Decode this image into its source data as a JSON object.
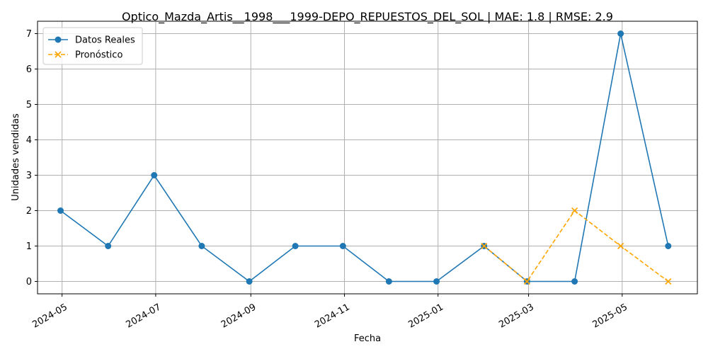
{
  "chart_data": {
    "type": "line",
    "title": "Optico_Mazda_Artis__1998___1999-DEPO_REPUESTOS_DEL_SOL | MAE: 1.8 | RMSE: 2.9",
    "xlabel": "Fecha",
    "ylabel": "Unidades vendidas",
    "ylim": [
      -0.35,
      7.35
    ],
    "xlim": [
      "2024-04-15",
      "2025-06-19"
    ],
    "grid": true,
    "legend_position": "top-left",
    "x_ticks": [
      "2024-05",
      "2024-07",
      "2024-09",
      "2024-11",
      "2025-01",
      "2025-03",
      "2025-05"
    ],
    "y_ticks": [
      0,
      1,
      2,
      3,
      4,
      5,
      6,
      7
    ],
    "series": [
      {
        "name": "Datos Reales",
        "color": "#1f77b4",
        "line_style": "solid",
        "marker": "circle",
        "points": [
          {
            "x": "2024-04-30",
            "y": 2
          },
          {
            "x": "2024-05-31",
            "y": 1
          },
          {
            "x": "2024-06-30",
            "y": 3
          },
          {
            "x": "2024-07-31",
            "y": 1
          },
          {
            "x": "2024-08-31",
            "y": 0
          },
          {
            "x": "2024-09-30",
            "y": 1
          },
          {
            "x": "2024-10-31",
            "y": 1
          },
          {
            "x": "2024-11-30",
            "y": 0
          },
          {
            "x": "2024-12-31",
            "y": 0
          },
          {
            "x": "2025-01-31",
            "y": 1
          },
          {
            "x": "2025-02-28",
            "y": 0
          },
          {
            "x": "2025-03-31",
            "y": 0
          },
          {
            "x": "2025-04-30",
            "y": 7
          },
          {
            "x": "2025-05-31",
            "y": 1
          }
        ]
      },
      {
        "name": "Pronóstico",
        "color": "#ffa500",
        "line_style": "dashed",
        "marker": "x",
        "points": [
          {
            "x": "2025-01-31",
            "y": 1
          },
          {
            "x": "2025-02-28",
            "y": 0
          },
          {
            "x": "2025-03-31",
            "y": 2
          },
          {
            "x": "2025-04-30",
            "y": 1
          },
          {
            "x": "2025-05-31",
            "y": 0
          }
        ]
      }
    ]
  }
}
